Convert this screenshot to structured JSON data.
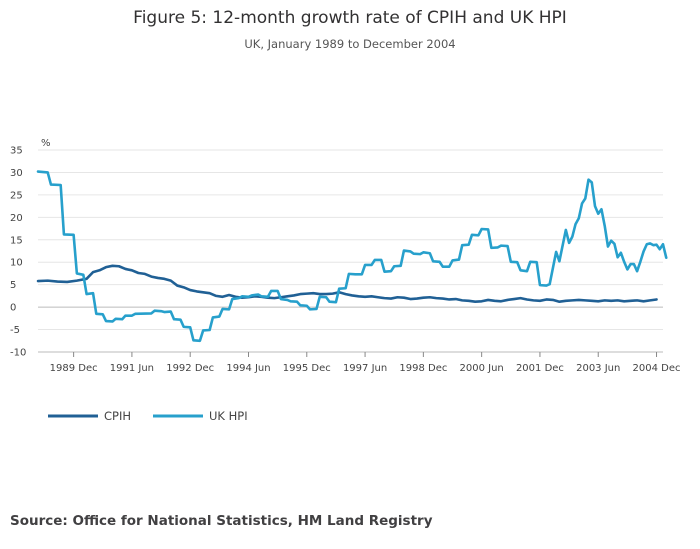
{
  "page": {
    "title": "Figure 5: 12-month growth rate of CPIH and UK HPI",
    "subtitle": "UK, January 1989 to December 2004",
    "source": "Source: Office for National Statistics, HM Land Registry"
  },
  "chart_data": {
    "type": "line",
    "title": "Figure 5: 12-month growth rate of CPIH and UK HPI",
    "subtitle": "UK, January 1989 to December 2004",
    "ylabel": "%",
    "xlabel": "",
    "ylim": [
      -10,
      35
    ],
    "yticks": [
      35,
      30,
      25,
      20,
      15,
      10,
      5,
      0,
      -5,
      -10
    ],
    "x_range_months": [
      0,
      191
    ],
    "xticks": [
      {
        "label": "1989 Dec",
        "month": 11
      },
      {
        "label": "1991 Jun",
        "month": 29
      },
      {
        "label": "1992 Dec",
        "month": 47
      },
      {
        "label": "1994 Jun",
        "month": 65
      },
      {
        "label": "1995 Dec",
        "month": 83
      },
      {
        "label": "1997 Jun",
        "month": 101
      },
      {
        "label": "1998 Dec",
        "month": 119
      },
      {
        "label": "2000 Jun",
        "month": 137
      },
      {
        "label": "2001 Dec",
        "month": 155
      },
      {
        "label": "2003 Jun",
        "month": 173
      },
      {
        "label": "2004 Dec",
        "month": 191
      }
    ],
    "grid": true,
    "legend_position": "bottom-left",
    "series": [
      {
        "name": "CPIH",
        "color": "#206095",
        "points": [
          [
            0,
            5.8
          ],
          [
            3,
            5.9
          ],
          [
            6,
            5.7
          ],
          [
            9,
            5.6
          ],
          [
            12,
            5.9
          ],
          [
            15,
            6.3
          ],
          [
            17,
            7.8
          ],
          [
            19,
            8.2
          ],
          [
            21,
            8.9
          ],
          [
            23,
            9.2
          ],
          [
            25,
            9.1
          ],
          [
            27,
            8.5
          ],
          [
            29,
            8.2
          ],
          [
            31,
            7.6
          ],
          [
            33,
            7.4
          ],
          [
            35,
            6.8
          ],
          [
            37,
            6.5
          ],
          [
            39,
            6.3
          ],
          [
            41,
            5.9
          ],
          [
            43,
            4.8
          ],
          [
            45,
            4.4
          ],
          [
            47,
            3.8
          ],
          [
            49,
            3.5
          ],
          [
            51,
            3.3
          ],
          [
            53,
            3.1
          ],
          [
            55,
            2.5
          ],
          [
            57,
            2.3
          ],
          [
            59,
            2.7
          ],
          [
            61,
            2.3
          ],
          [
            63,
            2.1
          ],
          [
            65,
            2.2
          ],
          [
            67,
            2.4
          ],
          [
            69,
            2.3
          ],
          [
            71,
            2.1
          ],
          [
            73,
            2.0
          ],
          [
            75,
            2.2
          ],
          [
            77,
            2.4
          ],
          [
            79,
            2.6
          ],
          [
            81,
            2.9
          ],
          [
            83,
            3.0
          ],
          [
            85,
            3.1
          ],
          [
            87,
            2.9
          ],
          [
            89,
            2.9
          ],
          [
            91,
            3.0
          ],
          [
            93,
            3.3
          ],
          [
            95,
            2.9
          ],
          [
            97,
            2.6
          ],
          [
            99,
            2.4
          ],
          [
            101,
            2.3
          ],
          [
            103,
            2.4
          ],
          [
            105,
            2.2
          ],
          [
            107,
            2.0
          ],
          [
            109,
            1.9
          ],
          [
            111,
            2.2
          ],
          [
            113,
            2.1
          ],
          [
            115,
            1.8
          ],
          [
            117,
            1.9
          ],
          [
            119,
            2.1
          ],
          [
            121,
            2.2
          ],
          [
            123,
            2.0
          ],
          [
            125,
            1.9
          ],
          [
            127,
            1.7
          ],
          [
            129,
            1.8
          ],
          [
            131,
            1.5
          ],
          [
            133,
            1.4
          ],
          [
            135,
            1.2
          ],
          [
            137,
            1.3
          ],
          [
            139,
            1.6
          ],
          [
            141,
            1.4
          ],
          [
            143,
            1.3
          ],
          [
            145,
            1.6
          ],
          [
            147,
            1.8
          ],
          [
            149,
            2.0
          ],
          [
            151,
            1.7
          ],
          [
            153,
            1.5
          ],
          [
            155,
            1.4
          ],
          [
            157,
            1.7
          ],
          [
            159,
            1.6
          ],
          [
            161,
            1.2
          ],
          [
            163,
            1.4
          ],
          [
            165,
            1.5
          ],
          [
            167,
            1.6
          ],
          [
            169,
            1.5
          ],
          [
            171,
            1.4
          ],
          [
            173,
            1.3
          ],
          [
            175,
            1.5
          ],
          [
            177,
            1.4
          ],
          [
            179,
            1.5
          ],
          [
            181,
            1.3
          ],
          [
            183,
            1.4
          ],
          [
            185,
            1.5
          ],
          [
            187,
            1.3
          ],
          [
            189,
            1.5
          ],
          [
            191,
            1.7
          ]
        ]
      },
      {
        "name": "UK HPI",
        "color": "#27a0cc",
        "points": [
          [
            0,
            30.2
          ],
          [
            3,
            30.0
          ],
          [
            4,
            27.3
          ],
          [
            7,
            27.2
          ],
          [
            8,
            16.2
          ],
          [
            11,
            16.1
          ],
          [
            12,
            7.5
          ],
          [
            14,
            7.2
          ],
          [
            15,
            2.9
          ],
          [
            17,
            3.1
          ],
          [
            18,
            -1.5
          ],
          [
            20,
            -1.6
          ],
          [
            21,
            -3.1
          ],
          [
            23,
            -3.2
          ],
          [
            24,
            -2.6
          ],
          [
            26,
            -2.7
          ],
          [
            27,
            -1.9
          ],
          [
            29,
            -1.9
          ],
          [
            30,
            -1.5
          ],
          [
            35,
            -1.4
          ],
          [
            36,
            -0.8
          ],
          [
            38,
            -0.9
          ],
          [
            39,
            -1.1
          ],
          [
            41,
            -1.0
          ],
          [
            42,
            -2.7
          ],
          [
            44,
            -2.8
          ],
          [
            45,
            -4.4
          ],
          [
            47,
            -4.5
          ],
          [
            48,
            -7.4
          ],
          [
            50,
            -7.5
          ],
          [
            51,
            -5.2
          ],
          [
            53,
            -5.1
          ],
          [
            54,
            -2.3
          ],
          [
            56,
            -2.1
          ],
          [
            57,
            -0.4
          ],
          [
            59,
            -0.5
          ],
          [
            60,
            1.8
          ],
          [
            62,
            2.0
          ],
          [
            63,
            2.4
          ],
          [
            65,
            2.3
          ],
          [
            66,
            2.6
          ],
          [
            68,
            2.8
          ],
          [
            69,
            2.4
          ],
          [
            71,
            2.3
          ],
          [
            72,
            3.6
          ],
          [
            74,
            3.6
          ],
          [
            75,
            1.8
          ],
          [
            77,
            1.6
          ],
          [
            78,
            1.3
          ],
          [
            80,
            1.2
          ],
          [
            81,
            0.4
          ],
          [
            83,
            0.3
          ],
          [
            84,
            -0.5
          ],
          [
            86,
            -0.4
          ],
          [
            87,
            2.3
          ],
          [
            89,
            2.2
          ],
          [
            90,
            1.2
          ],
          [
            92,
            1.1
          ],
          [
            93,
            4.1
          ],
          [
            95,
            4.2
          ],
          [
            96,
            7.4
          ],
          [
            98,
            7.3
          ],
          [
            100,
            7.3
          ],
          [
            101,
            9.4
          ],
          [
            103,
            9.4
          ],
          [
            104,
            10.5
          ],
          [
            106,
            10.5
          ],
          [
            107,
            7.9
          ],
          [
            109,
            8.0
          ],
          [
            110,
            9.1
          ],
          [
            112,
            9.2
          ],
          [
            113,
            12.6
          ],
          [
            115,
            12.4
          ],
          [
            116,
            11.9
          ],
          [
            118,
            11.8
          ],
          [
            119,
            12.2
          ],
          [
            121,
            12.0
          ],
          [
            122,
            10.2
          ],
          [
            124,
            10.1
          ],
          [
            125,
            9.0
          ],
          [
            127,
            9.0
          ],
          [
            128,
            10.4
          ],
          [
            130,
            10.6
          ],
          [
            131,
            13.8
          ],
          [
            133,
            13.9
          ],
          [
            134,
            16.1
          ],
          [
            136,
            16.0
          ],
          [
            137,
            17.4
          ],
          [
            139,
            17.3
          ],
          [
            140,
            13.2
          ],
          [
            142,
            13.3
          ],
          [
            143,
            13.7
          ],
          [
            145,
            13.6
          ],
          [
            146,
            10.1
          ],
          [
            148,
            10.0
          ],
          [
            149,
            8.2
          ],
          [
            151,
            8.0
          ],
          [
            152,
            10.1
          ],
          [
            154,
            10.0
          ],
          [
            155,
            4.9
          ],
          [
            157,
            4.8
          ],
          [
            158,
            5.1
          ],
          [
            160,
            12.3
          ],
          [
            161,
            10.2
          ],
          [
            163,
            17.2
          ],
          [
            164,
            14.3
          ],
          [
            165,
            15.7
          ],
          [
            166,
            18.5
          ],
          [
            167,
            19.8
          ],
          [
            168,
            23.1
          ],
          [
            169,
            24.2
          ],
          [
            170,
            28.4
          ],
          [
            171,
            27.8
          ],
          [
            172,
            22.5
          ],
          [
            173,
            20.8
          ],
          [
            174,
            21.8
          ],
          [
            175,
            18.1
          ],
          [
            176,
            13.5
          ],
          [
            177,
            14.8
          ],
          [
            178,
            14.1
          ],
          [
            179,
            11.1
          ],
          [
            180,
            12.1
          ],
          [
            181,
            10.1
          ],
          [
            182,
            8.4
          ],
          [
            183,
            9.6
          ],
          [
            184,
            9.6
          ],
          [
            185,
            8.0
          ],
          [
            186,
            10.1
          ],
          [
            187,
            12.4
          ],
          [
            188,
            14.0
          ],
          [
            189,
            14.2
          ],
          [
            190,
            13.8
          ],
          [
            191,
            13.9
          ],
          [
            192,
            12.9
          ],
          [
            193,
            14.0
          ],
          [
            194,
            11.0
          ]
        ]
      }
    ]
  }
}
